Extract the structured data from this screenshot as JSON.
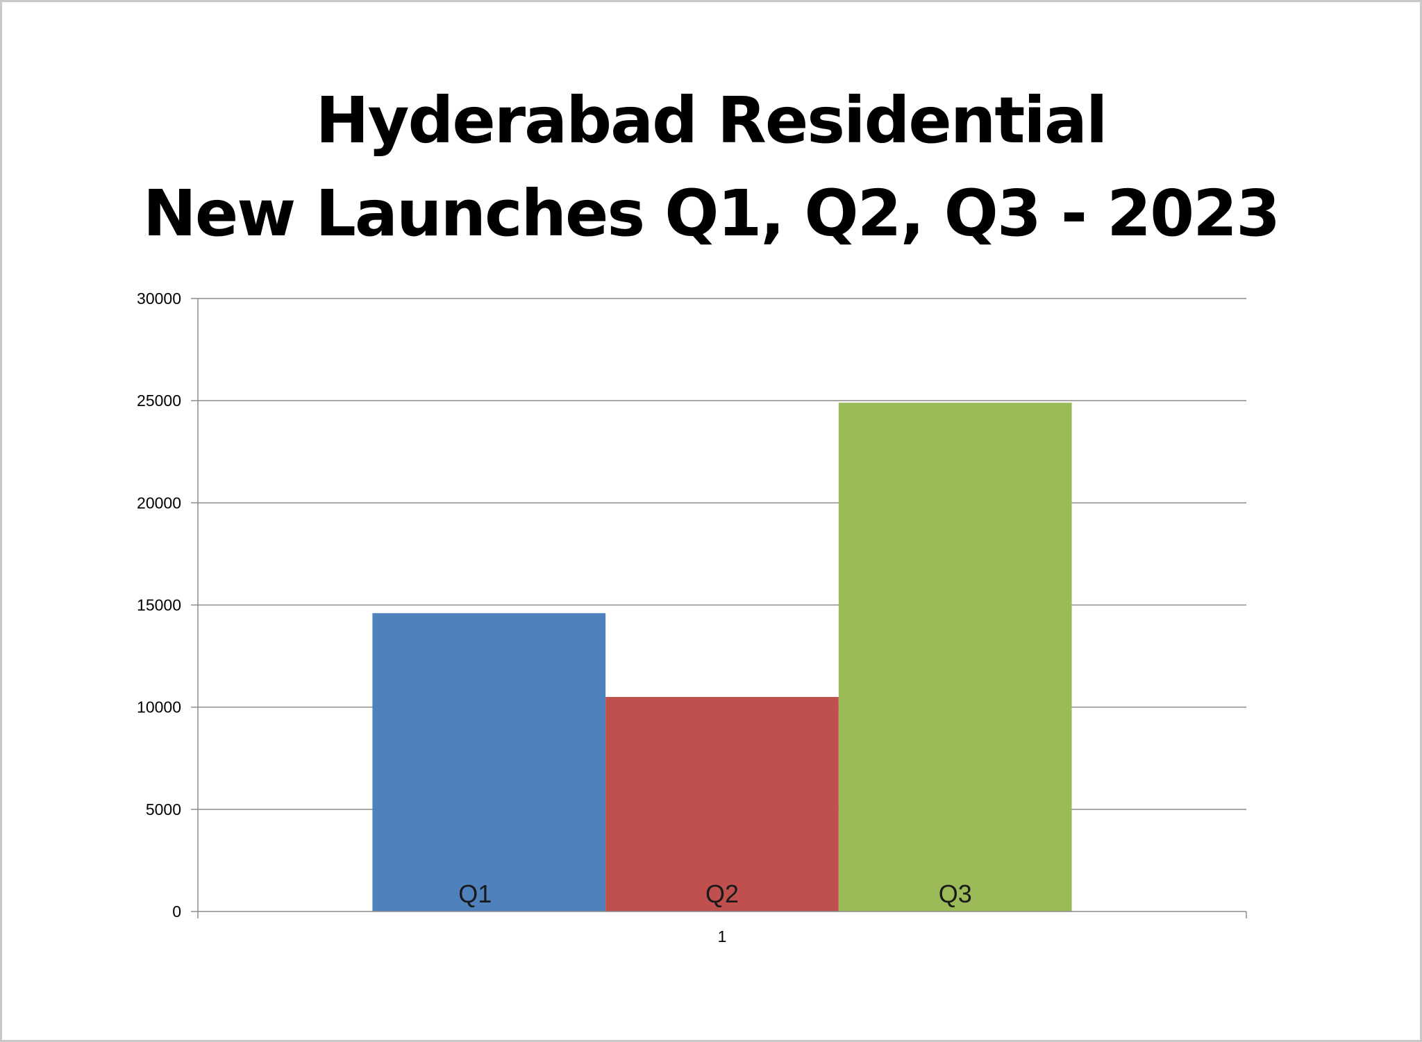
{
  "chart_data": {
    "type": "bar",
    "title_lines": [
      "Hyderabad Residential",
      "New Launches Q1, Q2, Q3 - 2023"
    ],
    "xlabel": "",
    "ylabel": "",
    "categories": [
      "1"
    ],
    "series": [
      {
        "name": "Q1",
        "values": [
          14600
        ],
        "color": "#4F81BD"
      },
      {
        "name": "Q2",
        "values": [
          10500
        ],
        "color": "#C0504D"
      },
      {
        "name": "Q3",
        "values": [
          24900
        ],
        "color": "#9BBB59"
      }
    ],
    "ylim": [
      0,
      30000
    ],
    "yticks": [
      "0",
      "5000",
      "10000",
      "15000",
      "20000",
      "25000",
      "30000"
    ],
    "grid": true,
    "legend": "none"
  }
}
